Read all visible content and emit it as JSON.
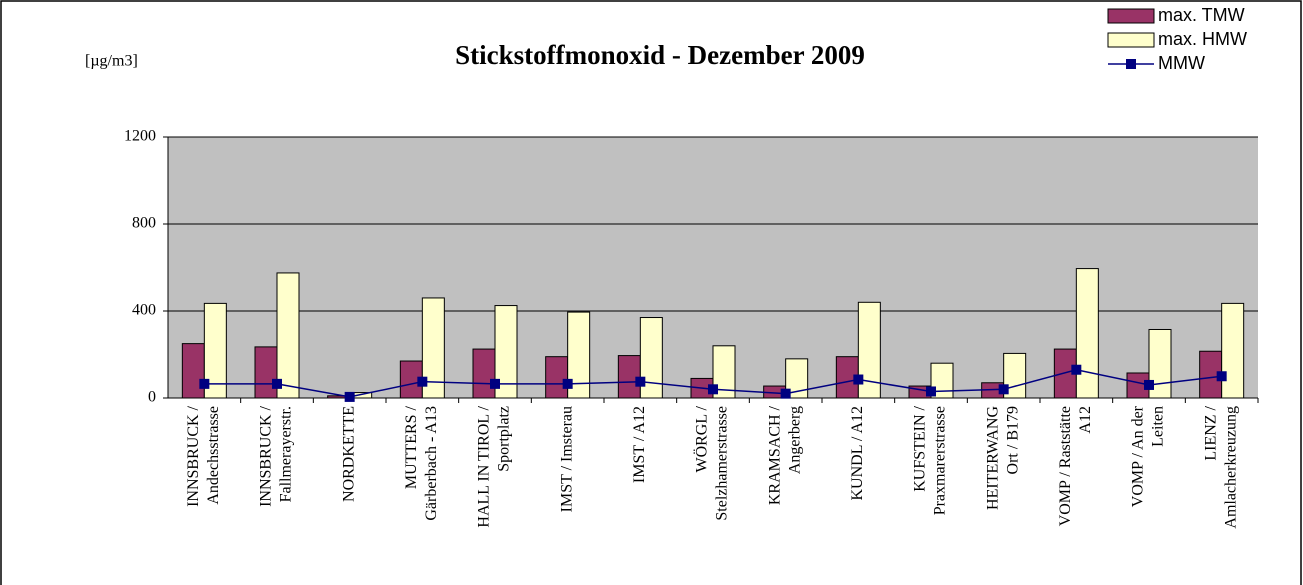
{
  "chart_data": {
    "type": "bar",
    "title": "Stickstoffmonoxid - Dezember 2009",
    "y_label": "[µg/m3]",
    "categories": [
      [
        "INNSBRUCK /",
        "Andechsstrasse"
      ],
      [
        "INNSBRUCK /",
        "Fallmerayerstr."
      ],
      [
        "NORDKETTE"
      ],
      [
        "MUTTERS /",
        "Gärberbach - A13"
      ],
      [
        "HALL IN TIROL /",
        "Sportplatz"
      ],
      [
        "IMST / Imsterau"
      ],
      [
        "IMST / A12"
      ],
      [
        "WÖRGL /",
        "Stelzhamerstrasse"
      ],
      [
        "KRAMSACH /",
        "Angerberg"
      ],
      [
        "KUNDL / A12"
      ],
      [
        "KUFSTEIN /",
        "Praxmarerstrasse"
      ],
      [
        "HEITERWANG",
        "Ort / B179"
      ],
      [
        "VOMP / Raststätte",
        "A12"
      ],
      [
        "VOMP / An der",
        "Leiten"
      ],
      [
        "LIENZ /",
        "Amlacherkreuzung"
      ]
    ],
    "series": [
      {
        "name": "max. TMW",
        "type": "bar",
        "color": "#993366",
        "values": [
          250,
          235,
          10,
          170,
          225,
          190,
          195,
          90,
          55,
          190,
          55,
          70,
          225,
          115,
          215
        ]
      },
      {
        "name": "max. HMW",
        "type": "bar",
        "color": "#ffffcc",
        "values": [
          435,
          575,
          25,
          460,
          425,
          395,
          370,
          240,
          180,
          440,
          160,
          205,
          595,
          315,
          435
        ]
      },
      {
        "name": "MMW",
        "type": "line",
        "color": "#000080",
        "values": [
          65,
          65,
          5,
          75,
          65,
          65,
          75,
          40,
          20,
          85,
          30,
          40,
          130,
          60,
          100
        ]
      }
    ],
    "ylim": [
      0,
      1200
    ],
    "yticks": [
      0,
      400,
      800,
      1200
    ],
    "grid": true,
    "legend": "top-right"
  }
}
